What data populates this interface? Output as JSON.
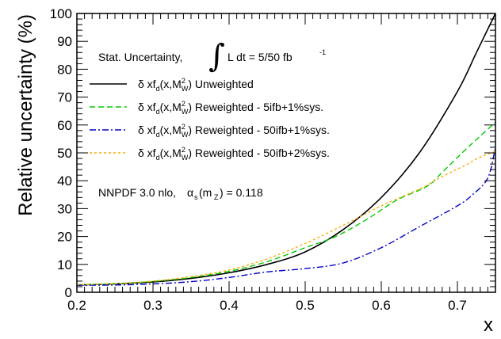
{
  "chart_data": {
    "type": "line",
    "xlabel": "x",
    "ylabel": "Relative uncertainty (%)",
    "xlim": [
      0.2,
      0.75
    ],
    "ylim": [
      0,
      100
    ],
    "x_ticks": [
      "0.2",
      "0.3",
      "0.4",
      "0.5",
      "0.6",
      "0.7"
    ],
    "y_ticks": [
      "0",
      "10",
      "20",
      "30",
      "40",
      "50",
      "60",
      "70",
      "80",
      "90",
      "100"
    ],
    "grid": false,
    "legend_position": "top-left",
    "annotations": {
      "stat_prefix": "Stat. Uncertainty,",
      "integral_sign": "∫",
      "stat_suffix": "L dt = 5/50 fb",
      "stat_exponent": "-1",
      "nnpdf_prefix": "NNPDF 3.0 nlo,",
      "alpha": "α",
      "alpha_sub": "s",
      "alpha_arg": "(m",
      "alpha_arg_sub": "Z",
      "alpha_value": ") = 0.118"
    },
    "legend_label_parts": {
      "prefix": "δ xf",
      "sub_d": "d",
      "mid": "(x,M",
      "sup_2": "2",
      "sub_w": "W",
      "close": ")"
    },
    "series": [
      {
        "name": "Unweighted",
        "color": "#000000",
        "dash": "solid",
        "points": [
          [
            0.2,
            2.6
          ],
          [
            0.25,
            3.0
          ],
          [
            0.3,
            3.7
          ],
          [
            0.35,
            5.0
          ],
          [
            0.4,
            7.0
          ],
          [
            0.45,
            10.0
          ],
          [
            0.5,
            14.5
          ],
          [
            0.55,
            22.5
          ],
          [
            0.6,
            34.0
          ],
          [
            0.65,
            50.0
          ],
          [
            0.7,
            72.0
          ],
          [
            0.725,
            86.0
          ],
          [
            0.75,
            100.0
          ]
        ]
      },
      {
        "name": "Reweighted - 5ifb+1%sys.",
        "color": "#00cc00",
        "dash": "dashed",
        "points": [
          [
            0.2,
            2.7
          ],
          [
            0.25,
            3.1
          ],
          [
            0.3,
            3.9
          ],
          [
            0.35,
            5.3
          ],
          [
            0.4,
            7.5
          ],
          [
            0.45,
            11.0
          ],
          [
            0.5,
            16.0
          ],
          [
            0.54,
            20.0
          ],
          [
            0.58,
            26.0
          ],
          [
            0.62,
            33.0
          ],
          [
            0.66,
            38.0
          ],
          [
            0.68,
            43.0
          ],
          [
            0.71,
            51.0
          ],
          [
            0.73,
            56.0
          ],
          [
            0.75,
            61.0
          ]
        ]
      },
      {
        "name": "Reweighted - 50ifb+1%sys.",
        "color": "#0000cc",
        "dash": "dashdot",
        "points": [
          [
            0.2,
            2.5
          ],
          [
            0.25,
            2.6
          ],
          [
            0.3,
            3.0
          ],
          [
            0.35,
            3.8
          ],
          [
            0.4,
            5.3
          ],
          [
            0.45,
            7.3
          ],
          [
            0.5,
            8.5
          ],
          [
            0.55,
            10.5
          ],
          [
            0.6,
            16.0
          ],
          [
            0.65,
            23.5
          ],
          [
            0.7,
            31.0
          ],
          [
            0.72,
            35.0
          ],
          [
            0.74,
            41.0
          ],
          [
            0.75,
            52.0
          ]
        ]
      },
      {
        "name": "Reweighted - 50ifb+2%sys.",
        "color": "#ffaa00",
        "dash": "dotted",
        "points": [
          [
            0.2,
            2.7
          ],
          [
            0.25,
            3.1
          ],
          [
            0.3,
            4.0
          ],
          [
            0.35,
            5.6
          ],
          [
            0.4,
            8.0
          ],
          [
            0.45,
            12.0
          ],
          [
            0.5,
            17.5
          ],
          [
            0.55,
            24.0
          ],
          [
            0.6,
            31.0
          ],
          [
            0.65,
            37.0
          ],
          [
            0.68,
            41.5
          ],
          [
            0.71,
            45.5
          ],
          [
            0.73,
            48.5
          ],
          [
            0.75,
            50.5
          ]
        ]
      }
    ]
  }
}
